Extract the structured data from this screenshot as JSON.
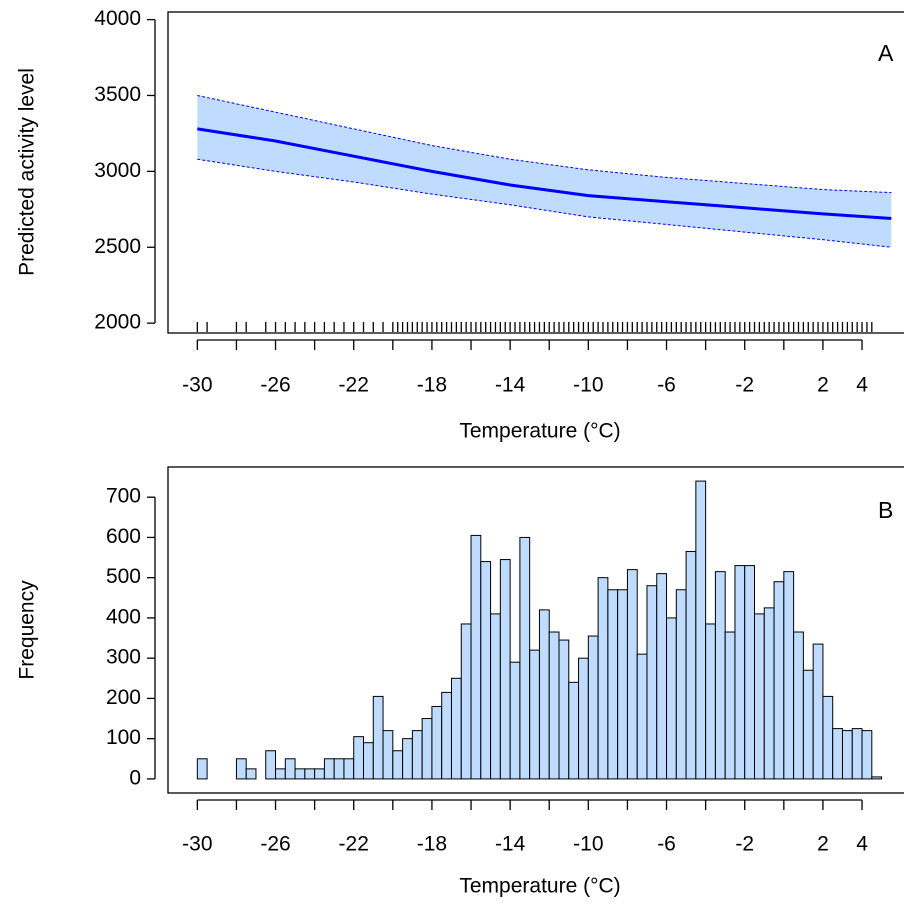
{
  "chart_data": [
    {
      "type": "line",
      "panel_label": "A",
      "ylabel": "Predicted activity level",
      "xlabel": "Temperature (°C)",
      "x": [
        -30,
        -26,
        -22,
        -18,
        -14,
        -10,
        -6,
        -2,
        2,
        5.5
      ],
      "values": [
        3280,
        3200,
        3100,
        3000,
        2910,
        2840,
        2800,
        2760,
        2720,
        2690
      ],
      "upper": [
        3500,
        3390,
        3280,
        3170,
        3080,
        3010,
        2960,
        2920,
        2880,
        2860
      ],
      "lower": [
        3080,
        3000,
        2930,
        2850,
        2780,
        2700,
        2650,
        2600,
        2550,
        2500
      ],
      "color": "#0000ff",
      "band_color": "#bfdcff",
      "rug": [
        -30,
        -29.5,
        -28,
        -27.5,
        -26.5,
        -26,
        -25.5,
        -25,
        -24.5,
        -24,
        -23.5,
        -23,
        -22.5,
        -22,
        -21.5,
        -21,
        -20.5,
        -20,
        -19.75,
        -19.5,
        -19.25,
        -19,
        -18.75,
        -18.5,
        -18.25,
        -18,
        -17.75,
        -17.5,
        -17.25,
        -17,
        -16.75,
        -16.5,
        -16.25,
        -16,
        -15.75,
        -15.5,
        -15.25,
        -15,
        -14.75,
        -14.5,
        -14.25,
        -14,
        -13.75,
        -13.5,
        -13.25,
        -13,
        -12.75,
        -12.5,
        -12.25,
        -12,
        -11.75,
        -11.5,
        -11.25,
        -11,
        -10.75,
        -10.5,
        -10.25,
        -10,
        -9.75,
        -9.5,
        -9.25,
        -9,
        -8.75,
        -8.5,
        -8.25,
        -8,
        -7.75,
        -7.5,
        -7.25,
        -7,
        -6.75,
        -6.5,
        -6.25,
        -6,
        -5.75,
        -5.5,
        -5.25,
        -5,
        -4.75,
        -4.5,
        -4.25,
        -4,
        -3.75,
        -3.5,
        -3.25,
        -3,
        -2.75,
        -2.5,
        -2.25,
        -2,
        -1.75,
        -1.5,
        -1.25,
        -1,
        -0.75,
        -0.5,
        -0.25,
        0,
        0.25,
        0.5,
        0.75,
        1,
        1.25,
        1.5,
        1.75,
        2,
        2.25,
        2.5,
        2.75,
        3,
        3.25,
        3.5,
        3.75,
        4,
        4.25,
        4.5
      ],
      "xlim": [
        -31.5,
        6.3
      ],
      "ylim": [
        1935,
        4050
      ],
      "xticks": [
        -30,
        -26,
        -22,
        -18,
        -14,
        -10,
        -6,
        -2,
        2,
        4
      ],
      "xminorticks": [
        -28,
        -24,
        -20,
        -16,
        -12,
        -8,
        -4,
        0
      ],
      "yticks": [
        2000,
        2500,
        3000,
        3500,
        4000
      ]
    },
    {
      "type": "histogram",
      "panel_label": "B",
      "ylabel": "Frequency",
      "xlabel": "Temperature (°C)",
      "bins": [
        -30,
        -29.5,
        -29,
        -28.5,
        -28,
        -27.5,
        -27,
        -26.5,
        -26,
        -25.5,
        -25,
        -24.5,
        -24,
        -23.5,
        -23,
        -22.5,
        -22,
        -21.5,
        -21,
        -20.5,
        -20,
        -19.5,
        -19,
        -18.5,
        -18,
        -17.5,
        -17,
        -16.5,
        -16,
        -15.5,
        -15,
        -14.5,
        -14,
        -13.5,
        -13,
        -12.5,
        -12,
        -11.5,
        -11,
        -10.5,
        -10,
        -9.5,
        -9,
        -8.5,
        -8,
        -7.5,
        -7,
        -6.5,
        -6,
        -5.5,
        -5,
        -4.5,
        -4,
        -3.5,
        -3,
        -2.5,
        -2,
        -1.5,
        -1,
        -0.5,
        0,
        0.5,
        1,
        1.5,
        2,
        2.5,
        3,
        3.5,
        4,
        4.5,
        5
      ],
      "values": [
        50,
        0,
        0,
        0,
        50,
        25,
        0,
        70,
        25,
        50,
        25,
        25,
        25,
        50,
        50,
        50,
        105,
        90,
        205,
        120,
        70,
        100,
        120,
        150,
        180,
        215,
        250,
        385,
        605,
        540,
        410,
        545,
        290,
        600,
        320,
        420,
        365,
        345,
        240,
        300,
        355,
        500,
        470,
        470,
        520,
        310,
        480,
        510,
        400,
        470,
        565,
        740,
        385,
        515,
        365,
        530,
        530,
        410,
        425,
        490,
        515,
        365,
        270,
        335,
        205,
        125,
        120,
        125,
        120,
        5
      ],
      "color": "#bfdcff",
      "xlim": [
        -31.5,
        6.3
      ],
      "ylim": [
        -35,
        775
      ],
      "xticks": [
        -30,
        -26,
        -22,
        -18,
        -14,
        -10,
        -6,
        -2,
        2,
        4
      ],
      "xminorticks": [
        -28,
        -24,
        -20,
        -16,
        -12,
        -8,
        -4,
        0
      ],
      "yticks": [
        0,
        100,
        200,
        300,
        400,
        500,
        600,
        700
      ]
    }
  ]
}
